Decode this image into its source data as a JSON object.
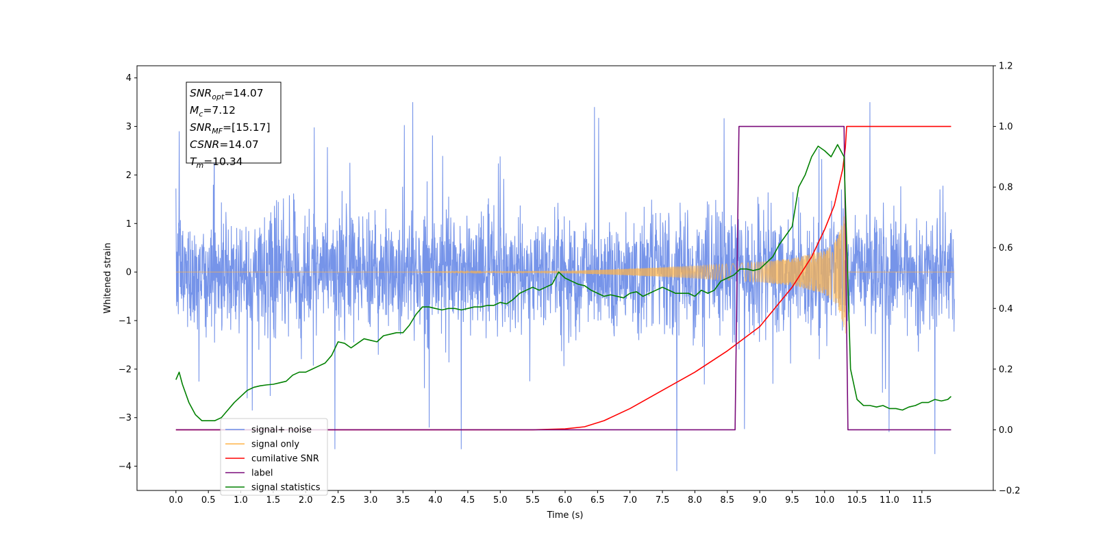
{
  "chart_data": {
    "type": "line",
    "title": "",
    "xlabel": "Time (s)",
    "ylabel": "Whitened strain",
    "ylabel_right": "",
    "xlim": [
      -0.6,
      12.6
    ],
    "ylim": [
      -4.5,
      4.25
    ],
    "ylim_right": [
      -0.2,
      1.2
    ],
    "x_ticks": [
      0.0,
      0.5,
      1.0,
      1.5,
      2.0,
      2.5,
      3.0,
      3.5,
      4.0,
      4.5,
      5.0,
      5.5,
      6.0,
      6.5,
      7.0,
      7.5,
      8.0,
      8.5,
      9.0,
      9.5,
      10.0,
      10.5,
      11.0,
      11.5
    ],
    "x_tick_labels": [
      "0.0",
      "0.5",
      "1.0",
      "1.5",
      "2.0",
      "2.5",
      "3.0",
      "3.5",
      "4.0",
      "4.5",
      "5.0",
      "5.5",
      "6.0",
      "6.5",
      "7.0",
      "7.5",
      "8.0",
      "8.5",
      "9.0",
      "9.5",
      "10.0",
      "10.5",
      "11.0",
      "11.5"
    ],
    "y_ticks": [
      -4,
      -3,
      -2,
      -1,
      0,
      1,
      2,
      3,
      4
    ],
    "y_tick_labels": [
      "−4",
      "−3",
      "−2",
      "−1",
      "0",
      "1",
      "2",
      "3",
      "4"
    ],
    "y_right_ticks": [
      -0.2,
      0.0,
      0.2,
      0.4,
      0.6,
      0.8,
      1.0,
      1.2
    ],
    "y_right_tick_labels": [
      "−0.2",
      "0.0",
      "0.2",
      "0.4",
      "0.6",
      "0.8",
      "1.0",
      "1.2"
    ],
    "grid": false,
    "legend_position": "lower-left",
    "annotation": [
      {
        "sym": "SNR",
        "sub": "opt",
        "value": "=14.07"
      },
      {
        "sym": "M",
        "sub": "c",
        "value": "=7.12"
      },
      {
        "sym": "SNR",
        "sub": "MF",
        "value": "=[15.17]"
      },
      {
        "sym": "CSNR",
        "sub": "",
        "value": "=14.07"
      },
      {
        "sym": "T",
        "sub": "m",
        "value": "=10.34"
      }
    ],
    "series": [
      {
        "name": "signal+ noise",
        "axis": "left",
        "color": "#6f8ee8",
        "t_start": 0.0,
        "t_end": 12.0,
        "noise_envelope": {
          "typical_max": 1.5,
          "peak_max": 3.5,
          "typical_min": -1.8,
          "peak_min": -4.1
        },
        "notable_spikes": [
          [
            0.05,
            2.9
          ],
          [
            3.65,
            3.5
          ],
          [
            6.45,
            3.4
          ],
          [
            10.7,
            3.5
          ],
          [
            7.72,
            -4.1
          ],
          [
            11.7,
            -3.75
          ],
          [
            2.45,
            -3.65
          ],
          [
            4.4,
            -3.65
          ]
        ]
      },
      {
        "name": "signal only",
        "axis": "left",
        "color": "#ffb347",
        "t_start": 0.0,
        "t_end": 12.0,
        "chirp": {
          "t_merger": 10.34,
          "amp_at": [
            [
              6.0,
              0.02
            ],
            [
              7.0,
              0.07
            ],
            [
              8.0,
              0.13
            ],
            [
              9.0,
              0.21
            ],
            [
              9.5,
              0.28
            ],
            [
              10.0,
              0.45
            ],
            [
              10.2,
              0.7
            ],
            [
              10.33,
              1.3
            ]
          ]
        }
      },
      {
        "name": "cumilative SNR",
        "axis": "right",
        "color": "#ff0000",
        "x": [
          0.0,
          5.5,
          6.0,
          6.3,
          6.6,
          7.0,
          7.5,
          8.0,
          8.5,
          9.0,
          9.5,
          9.8,
          10.0,
          10.15,
          10.28,
          10.32,
          10.34,
          11.0,
          11.5,
          11.95
        ],
        "values": [
          0.0,
          0.0,
          0.003,
          0.01,
          0.03,
          0.07,
          0.13,
          0.19,
          0.26,
          0.34,
          0.47,
          0.57,
          0.66,
          0.74,
          0.86,
          0.93,
          1.0,
          1.0,
          1.0,
          1.0
        ]
      },
      {
        "name": "label",
        "axis": "right",
        "color": "#7a0a7a",
        "x": [
          0.0,
          8.62,
          8.68,
          10.3,
          10.36,
          11.95
        ],
        "values": [
          0.0,
          0.0,
          1.0,
          1.0,
          0.0,
          0.0
        ]
      },
      {
        "name": "signal statistics",
        "axis": "right",
        "color": "#008000",
        "x": [
          0.0,
          0.05,
          0.1,
          0.2,
          0.3,
          0.4,
          0.5,
          0.6,
          0.7,
          0.8,
          0.9,
          1.0,
          1.1,
          1.2,
          1.3,
          1.4,
          1.5,
          1.6,
          1.7,
          1.8,
          1.9,
          2.0,
          2.1,
          2.2,
          2.3,
          2.4,
          2.5,
          2.6,
          2.7,
          2.8,
          2.9,
          3.0,
          3.1,
          3.2,
          3.3,
          3.4,
          3.5,
          3.6,
          3.7,
          3.8,
          3.9,
          4.0,
          4.1,
          4.2,
          4.3,
          4.4,
          4.5,
          4.6,
          4.7,
          4.8,
          4.9,
          5.0,
          5.1,
          5.2,
          5.3,
          5.4,
          5.5,
          5.6,
          5.7,
          5.8,
          5.9,
          6.0,
          6.1,
          6.2,
          6.3,
          6.4,
          6.5,
          6.6,
          6.7,
          6.8,
          6.9,
          7.0,
          7.1,
          7.2,
          7.3,
          7.4,
          7.5,
          7.6,
          7.7,
          7.8,
          7.9,
          8.0,
          8.1,
          8.2,
          8.3,
          8.4,
          8.5,
          8.6,
          8.7,
          8.8,
          8.9,
          9.0,
          9.1,
          9.2,
          9.3,
          9.4,
          9.5,
          9.6,
          9.7,
          9.8,
          9.9,
          10.0,
          10.1,
          10.2,
          10.3,
          10.35,
          10.4,
          10.5,
          10.6,
          10.7,
          10.8,
          10.9,
          11.0,
          11.1,
          11.2,
          11.3,
          11.4,
          11.5,
          11.6,
          11.7,
          11.8,
          11.9,
          11.95
        ],
        "values": [
          0.165,
          0.19,
          0.15,
          0.09,
          0.05,
          0.03,
          0.03,
          0.03,
          0.04,
          0.065,
          0.09,
          0.11,
          0.13,
          0.14,
          0.145,
          0.148,
          0.15,
          0.155,
          0.16,
          0.18,
          0.19,
          0.19,
          0.2,
          0.21,
          0.22,
          0.245,
          0.29,
          0.285,
          0.27,
          0.285,
          0.3,
          0.295,
          0.29,
          0.31,
          0.315,
          0.32,
          0.32,
          0.345,
          0.38,
          0.405,
          0.405,
          0.4,
          0.395,
          0.4,
          0.4,
          0.395,
          0.4,
          0.405,
          0.405,
          0.41,
          0.41,
          0.42,
          0.415,
          0.43,
          0.45,
          0.46,
          0.47,
          0.46,
          0.47,
          0.48,
          0.52,
          0.5,
          0.49,
          0.48,
          0.475,
          0.46,
          0.45,
          0.44,
          0.445,
          0.44,
          0.435,
          0.45,
          0.455,
          0.44,
          0.45,
          0.46,
          0.47,
          0.46,
          0.45,
          0.45,
          0.45,
          0.44,
          0.46,
          0.45,
          0.46,
          0.49,
          0.5,
          0.51,
          0.53,
          0.53,
          0.525,
          0.53,
          0.55,
          0.57,
          0.61,
          0.64,
          0.67,
          0.8,
          0.84,
          0.9,
          0.935,
          0.92,
          0.9,
          0.94,
          0.9,
          0.55,
          0.2,
          0.1,
          0.08,
          0.08,
          0.075,
          0.08,
          0.07,
          0.07,
          0.065,
          0.075,
          0.08,
          0.09,
          0.09,
          0.1,
          0.095,
          0.1,
          0.11
        ]
      }
    ]
  }
}
